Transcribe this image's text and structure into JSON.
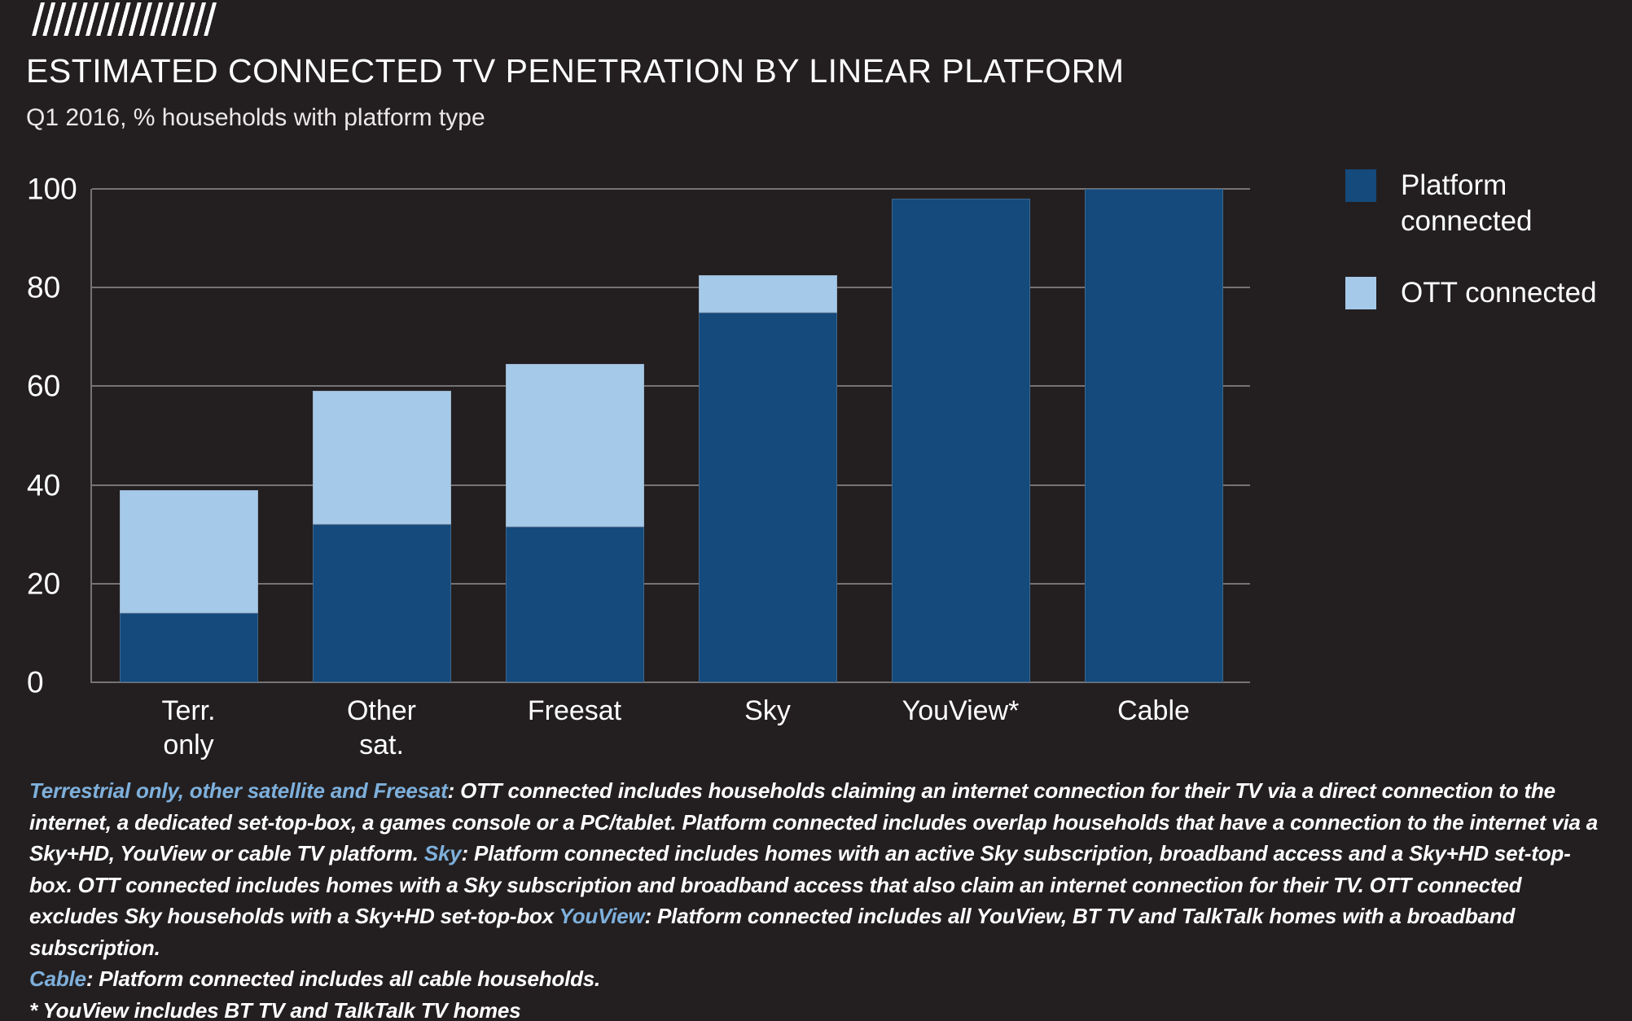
{
  "page": {
    "background": "#231F20"
  },
  "header": {
    "title": "ESTIMATED CONNECTED TV PENETRATION BY LINEAR PLATFORM",
    "subtitle": "Q1 2016, % households with platform type"
  },
  "legend": {
    "items": [
      {
        "label": "Platform\nconnected",
        "color": "#144A7C"
      },
      {
        "label": "OTT connected",
        "color": "#A5C9E9"
      }
    ]
  },
  "chart_data": {
    "type": "bar",
    "stacked": true,
    "title": "ESTIMATED CONNECTED TV PENETRATION BY LINEAR PLATFORM",
    "subtitle": "Q1 2016, % households with platform type",
    "categories": [
      "Terr. only",
      "Other sat.",
      "Freesat",
      "Sky",
      "YouView*",
      "Cable"
    ],
    "tick_labels": [
      "Terr.\nonly",
      "Other\nsat.",
      "Freesat",
      "Sky",
      "YouView*",
      "Cable"
    ],
    "series": [
      {
        "name": "Platform connected",
        "color": "#144A7C",
        "values": [
          14,
          32,
          31.5,
          75,
          98,
          100
        ]
      },
      {
        "name": "OTT connected",
        "color": "#A5C9E9",
        "values": [
          25,
          27,
          33,
          7.5,
          0,
          0
        ]
      }
    ],
    "stack_totals": [
      39,
      59,
      64.5,
      82.5,
      98,
      100
    ],
    "ylim": [
      0,
      100
    ],
    "yticks": [
      0,
      20,
      40,
      60,
      80,
      100
    ],
    "grid": true,
    "gridline_color": "#767374",
    "legend_position": "top-right"
  },
  "footnote": {
    "highlight_color": "#7EB0DC",
    "paragraphs": [
      [
        {
          "text": "Terrestrial only, other satellite and Freesat",
          "blue": true
        },
        {
          "text": ": OTT connected includes households claiming an internet connection for their TV via a direct connection to the internet, a dedicated set-top-box, a games console or a PC/tablet. Platform connected includes overlap households that have a connection to the internet via a Sky+HD, YouView or cable TV platform. ",
          "blue": false
        },
        {
          "text": "Sky",
          "blue": true
        },
        {
          "text": ": Platform connected includes homes with an active Sky subscription, broadband access and a Sky+HD set-top-box. OTT connected includes homes with a Sky subscription and broadband access that also claim an internet connection for their TV. OTT connected excludes Sky households with a Sky+HD set-top-box ",
          "blue": false
        },
        {
          "text": "YouView",
          "blue": true
        },
        {
          "text": ": Platform connected includes all YouView, BT TV and TalkTalk homes with a broadband subscription.",
          "blue": false
        }
      ],
      [
        {
          "text": "Cable",
          "blue": true
        },
        {
          "text": ": Platform connected includes all cable households.",
          "blue": false
        }
      ],
      [
        {
          "text": "* YouView includes BT TV and TalkTalk TV homes",
          "blue": false
        }
      ]
    ]
  }
}
